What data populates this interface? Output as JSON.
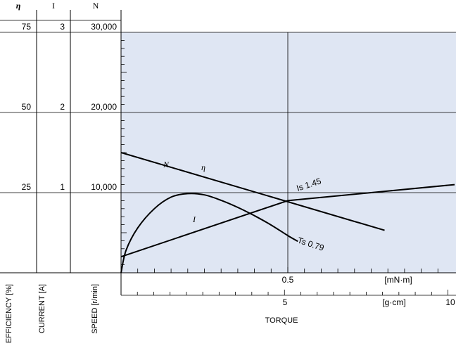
{
  "chart_data": {
    "type": "line",
    "title": "",
    "headers": {
      "efficiency": "η",
      "current": "I",
      "speed": "N"
    },
    "left_axes": [
      {
        "key": "efficiency",
        "label": "EFFICIENCY [%]",
        "ticks": [
          "25",
          "50",
          "75"
        ],
        "values": [
          25,
          50,
          75
        ]
      },
      {
        "key": "current",
        "label": "CURRENT [A]",
        "ticks": [
          "1",
          "2",
          "3"
        ],
        "values": [
          1,
          2,
          3
        ]
      },
      {
        "key": "speed",
        "label": "SPEED [r/min]",
        "ticks": [
          "10,000",
          "20,000",
          "30,000"
        ],
        "values": [
          10000,
          20000,
          30000
        ]
      }
    ],
    "x_axis": {
      "label": "TORQUE",
      "primary": {
        "unit": "[mN·m]",
        "tick_labels": [
          "0.5"
        ],
        "range": [
          0,
          1.0
        ]
      },
      "secondary": {
        "unit": "[g·cm]",
        "tick_labels": [
          "5",
          "10"
        ],
        "range": [
          0,
          10
        ]
      }
    },
    "grid": true,
    "series": [
      {
        "name": "N",
        "axis": "speed",
        "x": [
          0,
          0.79
        ],
        "y": [
          15000,
          5300
        ]
      },
      {
        "name": "I",
        "axis": "current",
        "x": [
          0,
          0.5,
          1.0
        ],
        "y": [
          0.2,
          0.9,
          1.1
        ]
      },
      {
        "name": "η",
        "axis": "efficiency",
        "x": [
          0,
          0.015,
          0.05,
          0.1,
          0.15,
          0.2,
          0.25,
          0.3,
          0.35,
          0.4,
          0.45,
          0.5,
          0.53
        ],
        "y": [
          0,
          7,
          14,
          20,
          23.6,
          24.7,
          24.3,
          22.6,
          20.4,
          17.8,
          14.9,
          11.6,
          9.8
        ]
      }
    ],
    "annotations": [
      {
        "series": "N",
        "text": "Ts 0.79"
      },
      {
        "series": "I",
        "text": "Is 1.45"
      }
    ]
  }
}
